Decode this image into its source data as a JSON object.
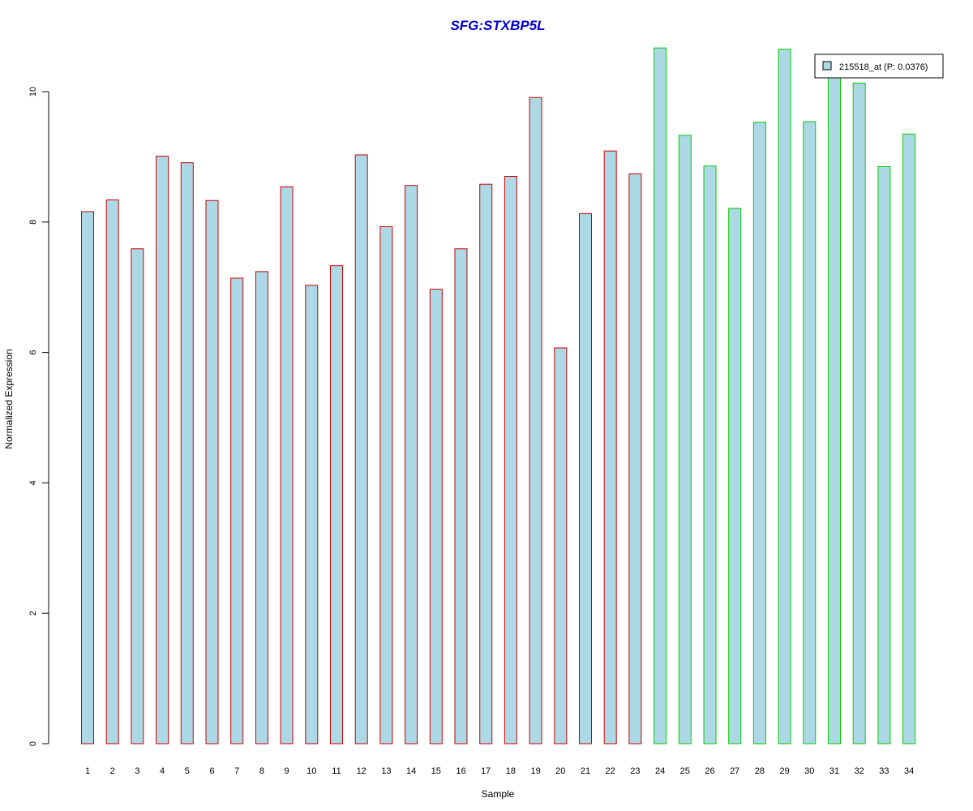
{
  "chart_data": {
    "type": "bar",
    "title": "SFG:STXBP5L",
    "xlabel": "Sample",
    "ylabel": "Normalized Expression",
    "categories": [
      "1",
      "2",
      "3",
      "4",
      "5",
      "6",
      "7",
      "8",
      "9",
      "10",
      "11",
      "12",
      "13",
      "14",
      "15",
      "16",
      "17",
      "18",
      "19",
      "20",
      "21",
      "22",
      "23",
      "24",
      "25",
      "26",
      "27",
      "28",
      "29",
      "30",
      "31",
      "32",
      "33",
      "34"
    ],
    "series": [
      {
        "name": "215518_at (P: 0.0376)",
        "values": [
          8.16,
          8.34,
          7.59,
          9.01,
          8.91,
          8.33,
          7.14,
          7.24,
          8.54,
          7.03,
          7.33,
          9.03,
          7.93,
          8.56,
          6.97,
          7.59,
          8.58,
          8.7,
          9.91,
          6.07,
          8.13,
          9.09,
          8.74,
          10.67,
          9.33,
          8.86,
          8.21,
          9.53,
          10.65,
          9.54,
          10.24,
          10.13,
          8.85,
          9.35
        ]
      }
    ],
    "bar_groups": [
      {
        "from": 1,
        "to": 23,
        "edge_color": "#cc0000"
      },
      {
        "from": 24,
        "to": 34,
        "edge_color": "#00cc00"
      }
    ],
    "yticks": [
      0,
      2,
      4,
      6,
      8,
      10
    ],
    "ylim": [
      0,
      10.67
    ],
    "legend": {
      "label": "215518_at (P: 0.0376)",
      "position": "top-right"
    },
    "grid": false,
    "colors": {
      "bar_fill": "#add8e6",
      "title": "#0000cc",
      "axis": "#000000"
    }
  }
}
